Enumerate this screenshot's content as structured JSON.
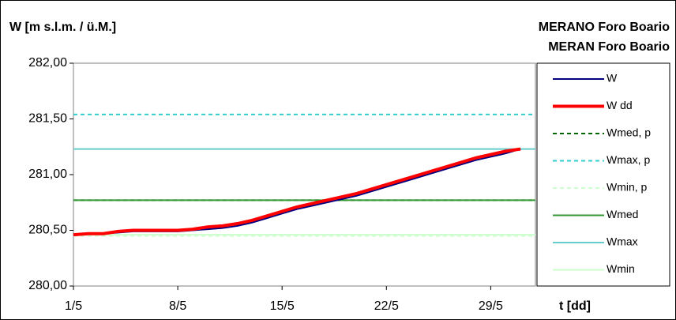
{
  "chart_data": {
    "type": "line",
    "title": "MERANO Foro Boario",
    "subtitle": "MERAN Foro Boario",
    "y_label": "W [m s.l.m. / ü.M.]",
    "x_label": "t [dd]",
    "x": [
      1,
      2,
      3,
      4,
      5,
      6,
      7,
      8,
      9,
      10,
      11,
      12,
      13,
      14,
      15,
      16,
      17,
      18,
      19,
      20,
      21,
      22,
      23,
      24,
      25,
      26,
      27,
      28,
      29,
      30,
      31
    ],
    "series": [
      {
        "name": "W",
        "color": "#000080",
        "width": 2,
        "values": [
          280.46,
          280.47,
          280.47,
          280.48,
          280.49,
          280.49,
          280.49,
          280.49,
          280.5,
          280.51,
          280.52,
          280.54,
          280.57,
          280.61,
          280.65,
          280.69,
          280.72,
          280.75,
          280.78,
          280.81,
          280.85,
          280.89,
          280.93,
          280.97,
          281.01,
          281.05,
          281.09,
          281.13,
          281.16,
          281.19,
          281.23
        ]
      },
      {
        "name": "W dd",
        "color": "#ff0000",
        "width": 4,
        "values": [
          280.46,
          280.47,
          280.47,
          280.49,
          280.5,
          280.5,
          280.5,
          280.5,
          280.51,
          280.53,
          280.54,
          280.56,
          280.59,
          280.63,
          280.67,
          280.71,
          280.74,
          280.77,
          280.8,
          280.83,
          280.87,
          280.91,
          280.95,
          280.99,
          281.03,
          281.07,
          281.11,
          281.15,
          281.18,
          281.21,
          281.23
        ]
      }
    ],
    "levels": [
      {
        "name": "Wmed, p",
        "color": "#006600",
        "dashed": true,
        "value": 280.77
      },
      {
        "name": "Wmax, p",
        "color": "#33cccc",
        "dashed": true,
        "value": 281.54
      },
      {
        "name": "Wmin, p",
        "color": "#ccffcc",
        "dashed": true,
        "value": 280.45
      },
      {
        "name": "Wmed",
        "color": "#339933",
        "dashed": false,
        "value": 280.77
      },
      {
        "name": "Wmax",
        "color": "#66cccc",
        "dashed": false,
        "value": 281.23
      },
      {
        "name": "Wmin",
        "color": "#ccffcc",
        "dashed": false,
        "value": 280.46
      }
    ],
    "xlim": [
      1,
      32
    ],
    "xticks": [
      {
        "value": 1,
        "label": "1/5"
      },
      {
        "value": 8,
        "label": "8/5"
      },
      {
        "value": 15,
        "label": "15/5"
      },
      {
        "value": 22,
        "label": "22/5"
      },
      {
        "value": 29,
        "label": "29/5"
      }
    ],
    "ylim": [
      280,
      282
    ],
    "yticks": [
      {
        "value": 280,
        "label": "280,00"
      },
      {
        "value": 280.5,
        "label": "280,50"
      },
      {
        "value": 281,
        "label": "281,00"
      },
      {
        "value": 281.5,
        "label": "281,50"
      },
      {
        "value": 282,
        "label": "282,00"
      }
    ],
    "legend": "right"
  }
}
